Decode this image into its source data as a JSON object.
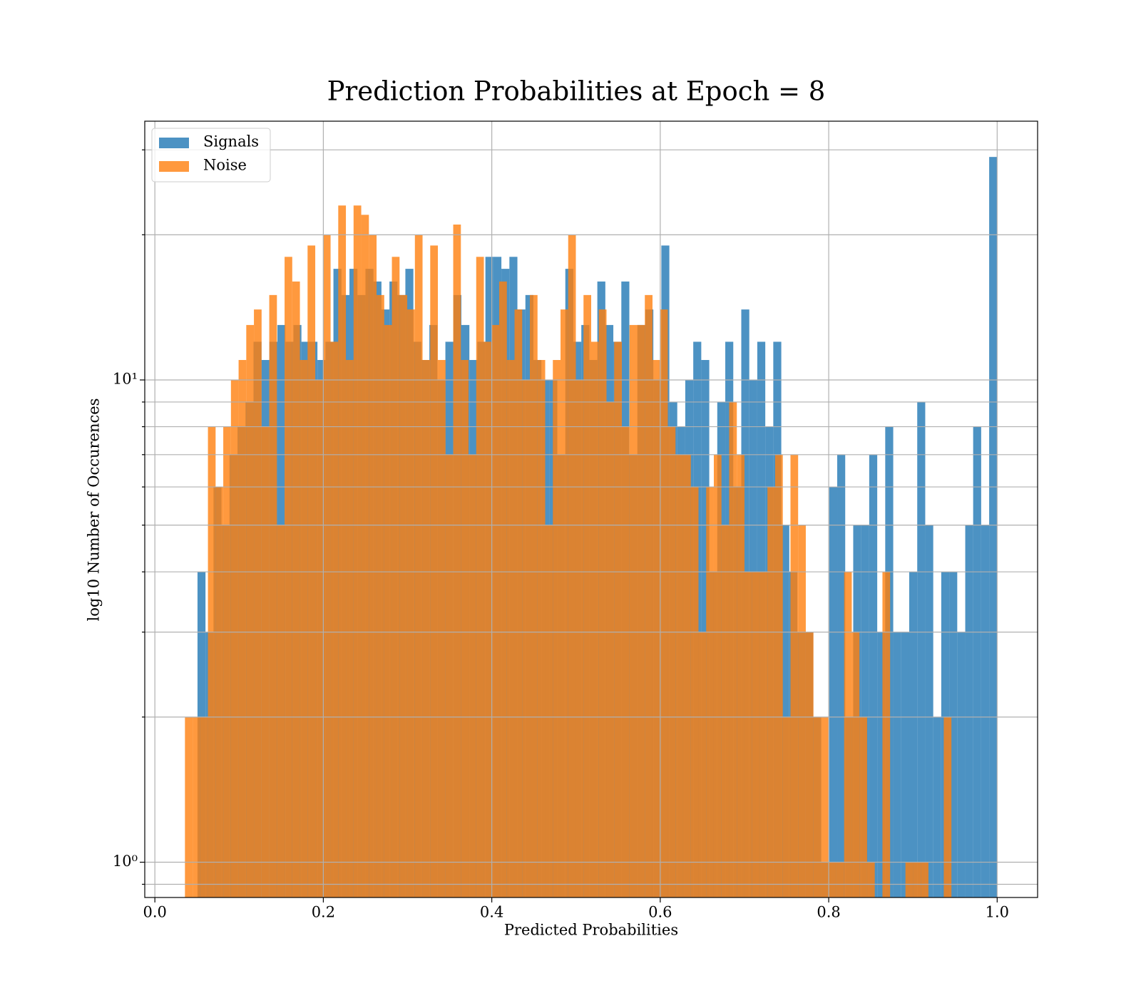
{
  "chart_data": {
    "type": "histogram",
    "title": "Prediction Probabilities at Epoch = 8",
    "xlabel": "Predicted Probabilities",
    "ylabel": "log10 Number of Occurences",
    "yscale": "log",
    "grid": true,
    "legend": "upper left",
    "alpha": 0.8,
    "xlim": [
      -0.012,
      1.048
    ],
    "ylim": [
      0.845,
      34.4
    ],
    "xticks": [
      {
        "value": 0,
        "label": "0.0"
      },
      0.2,
      0.4,
      0.6,
      0.8,
      {
        "value": 1,
        "label": "1.0"
      }
    ],
    "yticks": [
      {
        "value": 1,
        "label": "10⁰"
      },
      {
        "value": 10,
        "label": "10¹"
      }
    ],
    "yminorticks": [
      0.9,
      2,
      3,
      4,
      5,
      6,
      7,
      8,
      9,
      20,
      30
    ],
    "series": [
      {
        "name": "Signals",
        "color": "#1f77b4",
        "bins": [
          0.0506,
          0.0601,
          0.0696,
          0.0791,
          0.0886,
          0.0981,
          0.1076,
          0.1171,
          0.1266,
          0.136,
          0.1455,
          0.155,
          0.1645,
          0.174,
          0.1835,
          0.193,
          0.2025,
          0.212,
          0.2215,
          0.231,
          0.2405,
          0.25,
          0.2595,
          0.269,
          0.2785,
          0.288,
          0.2974,
          0.3069,
          0.3164,
          0.3259,
          0.3354,
          0.3449,
          0.3544,
          0.3639,
          0.3734,
          0.3829,
          0.3924,
          0.4019,
          0.4114,
          0.4209,
          0.4304,
          0.4399,
          0.4494,
          0.4589,
          0.4684,
          0.4778,
          0.4873,
          0.4968,
          0.5063,
          0.5158,
          0.5253,
          0.5348,
          0.5443,
          0.5538,
          0.5633,
          0.5728,
          0.5823,
          0.5918,
          0.6013,
          0.6108,
          0.6202,
          0.6297,
          0.6392,
          0.6487,
          0.6582,
          0.6677,
          0.6772,
          0.6867,
          0.6962,
          0.7057,
          0.7152,
          0.7247,
          0.7342,
          0.7437,
          0.7532,
          0.7627,
          0.7722,
          0.7817,
          0.7911,
          0.8006,
          0.8101,
          0.8196,
          0.8291,
          0.8386,
          0.8481,
          0.8576,
          0.8671,
          0.8766,
          0.8861,
          0.8956,
          0.9051,
          0.9146,
          0.9241,
          0.9336,
          0.9431,
          0.9526,
          0.9621,
          0.9715,
          0.981,
          0.9905,
          1.0
        ],
        "values": [
          4,
          3,
          6,
          5,
          7,
          8,
          9,
          12,
          11,
          12,
          13,
          12,
          13,
          12,
          12,
          11,
          12,
          17,
          15,
          17,
          15,
          17,
          16,
          14,
          16,
          15,
          17,
          12,
          11,
          13,
          10,
          12,
          15,
          13,
          11,
          12,
          18,
          18,
          17,
          18,
          14,
          15,
          11,
          10,
          10,
          7,
          17,
          12,
          13,
          11,
          16,
          13,
          12,
          16,
          7,
          13,
          14,
          10,
          19,
          9,
          8,
          10,
          12,
          11,
          4,
          9,
          12,
          6,
          14,
          10,
          12,
          8,
          12,
          5,
          4,
          3,
          3,
          2,
          1,
          6,
          7,
          2,
          5,
          5,
          7,
          3,
          8,
          3,
          3,
          4,
          9,
          5,
          2,
          4,
          4,
          3,
          5,
          8,
          5,
          29
        ]
      },
      {
        "name": "Noise",
        "color": "#ff7f0e",
        "bins": [
          0.0357,
          0.0448,
          0.0539,
          0.063,
          0.0721,
          0.0812,
          0.0903,
          0.0994,
          0.1085,
          0.1176,
          0.1267,
          0.1358,
          0.1449,
          0.154,
          0.1631,
          0.1722,
          0.1813,
          0.1904,
          0.1995,
          0.2086,
          0.2177,
          0.2268,
          0.2359,
          0.245,
          0.2541,
          0.2632,
          0.2723,
          0.2814,
          0.2905,
          0.2996,
          0.3087,
          0.3178,
          0.3269,
          0.336,
          0.3451,
          0.3542,
          0.3633,
          0.3724,
          0.3815,
          0.3906,
          0.3997,
          0.4088,
          0.4179,
          0.427,
          0.4361,
          0.4452,
          0.4543,
          0.4634,
          0.4725,
          0.4816,
          0.4907,
          0.4998,
          0.5089,
          0.518,
          0.5271,
          0.5362,
          0.5453,
          0.5544,
          0.5635,
          0.5726,
          0.5817,
          0.5908,
          0.5999,
          0.609,
          0.6181,
          0.6272,
          0.6363,
          0.6454,
          0.6545,
          0.6636,
          0.6727,
          0.6818,
          0.6909,
          0.7,
          0.7091,
          0.7182,
          0.7273,
          0.7364,
          0.7455,
          0.7546,
          0.7637,
          0.7728,
          0.7819,
          0.791,
          0.8001,
          0.8092,
          0.8183,
          0.8274,
          0.8365,
          0.8456,
          0.8547,
          0.8638,
          0.8729,
          0.882,
          0.8911,
          0.9002,
          0.9093,
          0.9184,
          0.9275,
          0.9366,
          0.9457
        ],
        "values": [
          2,
          2,
          2,
          8,
          6,
          8,
          10,
          11,
          13,
          14,
          8,
          15,
          5,
          18,
          16,
          11,
          19,
          10,
          20,
          12,
          23,
          11,
          23,
          22,
          20,
          15,
          13,
          18,
          15,
          14,
          20,
          11,
          19,
          11,
          7,
          21,
          11,
          7,
          18,
          12,
          13,
          16,
          11,
          14,
          10,
          15,
          11,
          5,
          11,
          14,
          20,
          10,
          15,
          12,
          14,
          9,
          12,
          8,
          13,
          13,
          15,
          11,
          14,
          8,
          7,
          7,
          6,
          3,
          6,
          7,
          5,
          9,
          7,
          4,
          4,
          4,
          6,
          7,
          2,
          7,
          5,
          3,
          2,
          2,
          1,
          1,
          4,
          3,
          2,
          1,
          0,
          4,
          0,
          0,
          1,
          1,
          1,
          0,
          0,
          2
        ]
      }
    ]
  }
}
